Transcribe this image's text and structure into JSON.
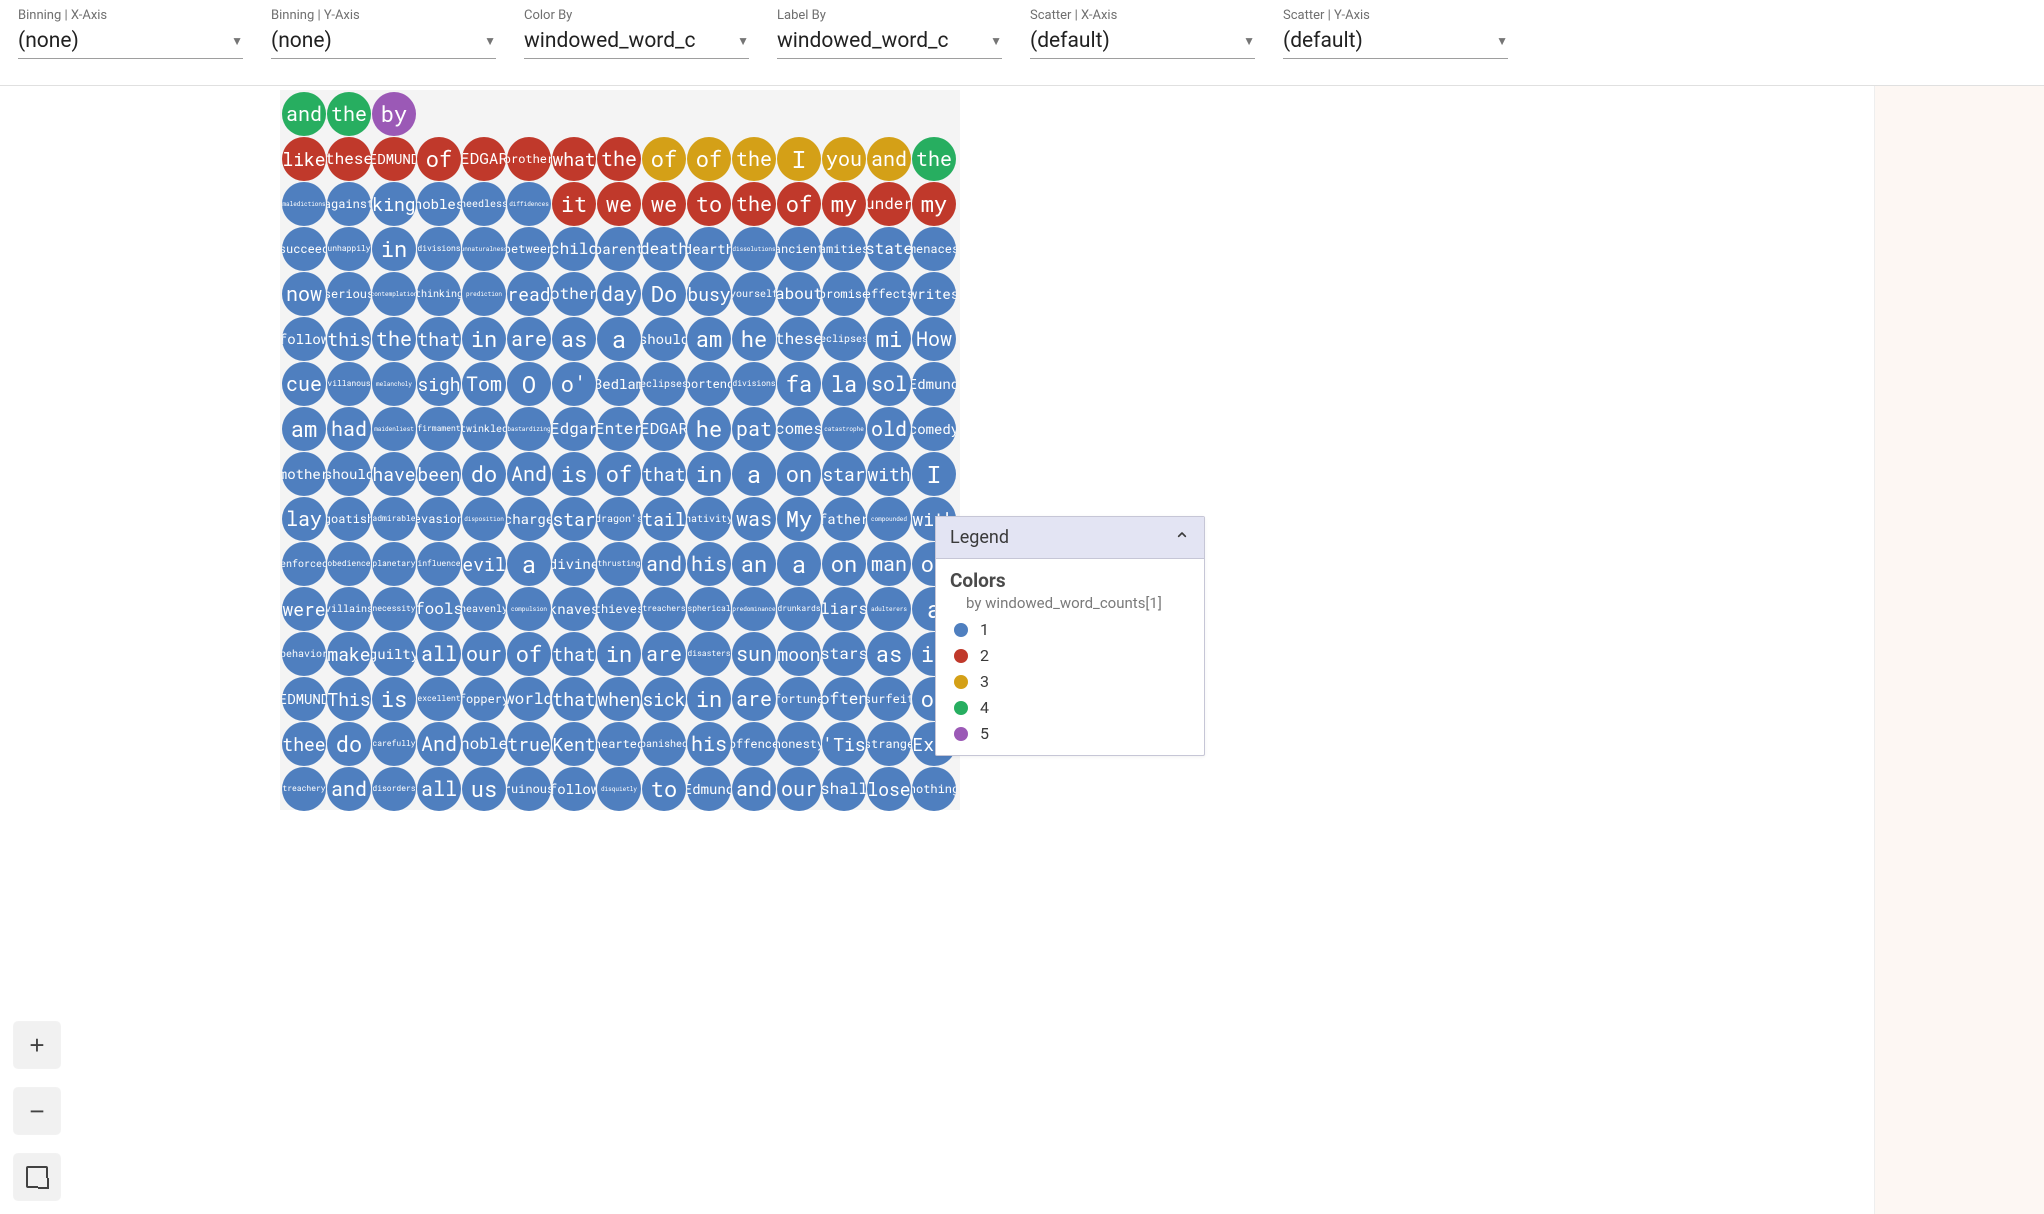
{
  "controls": [
    {
      "label": "Binning | X-Axis",
      "value": "(none)"
    },
    {
      "label": "Binning | Y-Axis",
      "value": "(none)"
    },
    {
      "label": "Color By",
      "value": "windowed_word_c"
    },
    {
      "label": "Label By",
      "value": "windowed_word_c"
    },
    {
      "label": "Scatter | X-Axis",
      "value": "(default)"
    },
    {
      "label": "Scatter | Y-Axis",
      "value": "(default)"
    }
  ],
  "colors": {
    "1": "#4f7fbf",
    "2": "#c0392b",
    "3": "#d4a017",
    "4": "#27ae60",
    "5": "#9b59b6"
  },
  "fontScale": {
    "max": 24,
    "min": 6,
    "maxLen": 1,
    "minLen": 10
  },
  "short_row_cols": 3,
  "rows": [
    [
      {
        "t": "and",
        "c": 4
      },
      {
        "t": "the",
        "c": 4
      },
      {
        "t": "by",
        "c": 5
      }
    ],
    [
      {
        "t": "like",
        "c": 2
      },
      {
        "t": "these",
        "c": 2
      },
      {
        "t": "EDMUND",
        "c": 2
      },
      {
        "t": "of",
        "c": 2
      },
      {
        "t": "EDGAR",
        "c": 2
      },
      {
        "t": "brother",
        "c": 2
      },
      {
        "t": "what",
        "c": 2
      },
      {
        "t": "the",
        "c": 2
      },
      {
        "t": "of",
        "c": 3
      },
      {
        "t": "of",
        "c": 3
      },
      {
        "t": "the",
        "c": 3
      },
      {
        "t": "I",
        "c": 3
      },
      {
        "t": "you",
        "c": 3
      },
      {
        "t": "and",
        "c": 3
      },
      {
        "t": "the",
        "c": 4
      }
    ],
    [
      {
        "t": "maledictions",
        "c": 1
      },
      {
        "t": "against",
        "c": 1
      },
      {
        "t": "king",
        "c": 1
      },
      {
        "t": "nobles",
        "c": 1
      },
      {
        "t": "needless",
        "c": 1
      },
      {
        "t": "diffidences",
        "c": 1
      },
      {
        "t": "it",
        "c": 2
      },
      {
        "t": "we",
        "c": 2
      },
      {
        "t": "we",
        "c": 2
      },
      {
        "t": "to",
        "c": 2
      },
      {
        "t": "the",
        "c": 2
      },
      {
        "t": "of",
        "c": 2
      },
      {
        "t": "my",
        "c": 2
      },
      {
        "t": "under",
        "c": 2
      },
      {
        "t": "my",
        "c": 2
      }
    ],
    [
      {
        "t": "succeed",
        "c": 1
      },
      {
        "t": "unhappily",
        "c": 1
      },
      {
        "t": "in",
        "c": 1
      },
      {
        "t": "divisions",
        "c": 1
      },
      {
        "t": "unnaturalness",
        "c": 1
      },
      {
        "t": "between",
        "c": 1
      },
      {
        "t": "child",
        "c": 1
      },
      {
        "t": "parent",
        "c": 1
      },
      {
        "t": "death",
        "c": 1
      },
      {
        "t": "dearth",
        "c": 1
      },
      {
        "t": "dissolutions",
        "c": 1
      },
      {
        "t": "ancient",
        "c": 1
      },
      {
        "t": "amities",
        "c": 1
      },
      {
        "t": "state",
        "c": 1
      },
      {
        "t": "menaces",
        "c": 1
      }
    ],
    [
      {
        "t": "now",
        "c": 1
      },
      {
        "t": "serious",
        "c": 1
      },
      {
        "t": "contemplation",
        "c": 1
      },
      {
        "t": "thinking",
        "c": 1
      },
      {
        "t": "prediction",
        "c": 1
      },
      {
        "t": "read",
        "c": 1
      },
      {
        "t": "other",
        "c": 1
      },
      {
        "t": "day",
        "c": 1
      },
      {
        "t": "Do",
        "c": 1
      },
      {
        "t": "busy",
        "c": 1
      },
      {
        "t": "yourself",
        "c": 1
      },
      {
        "t": "about",
        "c": 1
      },
      {
        "t": "promise",
        "c": 1
      },
      {
        "t": "effects",
        "c": 1
      },
      {
        "t": "writes",
        "c": 1
      }
    ],
    [
      {
        "t": "follow",
        "c": 1
      },
      {
        "t": "this",
        "c": 1
      },
      {
        "t": "the",
        "c": 1
      },
      {
        "t": "that",
        "c": 1
      },
      {
        "t": "in",
        "c": 1
      },
      {
        "t": "are",
        "c": 1
      },
      {
        "t": "as",
        "c": 1
      },
      {
        "t": "a",
        "c": 1
      },
      {
        "t": "should",
        "c": 1
      },
      {
        "t": "am",
        "c": 1
      },
      {
        "t": "he",
        "c": 1
      },
      {
        "t": "these",
        "c": 1
      },
      {
        "t": "eclipses",
        "c": 1
      },
      {
        "t": "mi",
        "c": 1
      },
      {
        "t": "How",
        "c": 1
      }
    ],
    [
      {
        "t": "cue",
        "c": 1
      },
      {
        "t": "villanous",
        "c": 1
      },
      {
        "t": "melancholy",
        "c": 1
      },
      {
        "t": "sigh",
        "c": 1
      },
      {
        "t": "Tom",
        "c": 1
      },
      {
        "t": "O",
        "c": 1
      },
      {
        "t": "o'",
        "c": 1
      },
      {
        "t": "Bedlam",
        "c": 1
      },
      {
        "t": "eclipses",
        "c": 1
      },
      {
        "t": "portend",
        "c": 1
      },
      {
        "t": "divisions",
        "c": 1
      },
      {
        "t": "fa",
        "c": 1
      },
      {
        "t": "la",
        "c": 1
      },
      {
        "t": "sol",
        "c": 1
      },
      {
        "t": "Edmund",
        "c": 1
      }
    ],
    [
      {
        "t": "am",
        "c": 1
      },
      {
        "t": "had",
        "c": 1
      },
      {
        "t": "maidenliest",
        "c": 1
      },
      {
        "t": "firmament",
        "c": 1
      },
      {
        "t": "twinkled",
        "c": 1
      },
      {
        "t": "bastardizing",
        "c": 1
      },
      {
        "t": "Edgar",
        "c": 1
      },
      {
        "t": "Enter",
        "c": 1
      },
      {
        "t": "EDGAR",
        "c": 1
      },
      {
        "t": "he",
        "c": 1
      },
      {
        "t": "pat",
        "c": 1
      },
      {
        "t": "comes",
        "c": 1
      },
      {
        "t": "catastrophe",
        "c": 1
      },
      {
        "t": "old",
        "c": 1
      },
      {
        "t": "comedy",
        "c": 1
      }
    ],
    [
      {
        "t": "mother",
        "c": 1
      },
      {
        "t": "should",
        "c": 1
      },
      {
        "t": "have",
        "c": 1
      },
      {
        "t": "been",
        "c": 1
      },
      {
        "t": "do",
        "c": 1
      },
      {
        "t": "And",
        "c": 1
      },
      {
        "t": "is",
        "c": 1
      },
      {
        "t": "of",
        "c": 1
      },
      {
        "t": "that",
        "c": 1
      },
      {
        "t": "in",
        "c": 1
      },
      {
        "t": "a",
        "c": 1
      },
      {
        "t": "on",
        "c": 1
      },
      {
        "t": "star",
        "c": 1
      },
      {
        "t": "with",
        "c": 1
      },
      {
        "t": "I",
        "c": 1
      }
    ],
    [
      {
        "t": "lay",
        "c": 1
      },
      {
        "t": "goatish",
        "c": 1
      },
      {
        "t": "admirable",
        "c": 1
      },
      {
        "t": "evasion",
        "c": 1
      },
      {
        "t": "disposition",
        "c": 1
      },
      {
        "t": "charge",
        "c": 1
      },
      {
        "t": "star",
        "c": 1
      },
      {
        "t": "dragon's",
        "c": 1
      },
      {
        "t": "tail",
        "c": 1
      },
      {
        "t": "nativity",
        "c": 1
      },
      {
        "t": "was",
        "c": 1
      },
      {
        "t": "My",
        "c": 1
      },
      {
        "t": "father",
        "c": 1
      },
      {
        "t": "compounded",
        "c": 1
      },
      {
        "t": "with",
        "c": 1
      }
    ],
    [
      {
        "t": "enforced",
        "c": 1
      },
      {
        "t": "obedience",
        "c": 1
      },
      {
        "t": "planetary",
        "c": 1
      },
      {
        "t": "influence",
        "c": 1
      },
      {
        "t": "evil",
        "c": 1
      },
      {
        "t": "a",
        "c": 1
      },
      {
        "t": "divine",
        "c": 1
      },
      {
        "t": "thrusting",
        "c": 1
      },
      {
        "t": "and",
        "c": 1
      },
      {
        "t": "his",
        "c": 1
      },
      {
        "t": "an",
        "c": 1
      },
      {
        "t": "a",
        "c": 1
      },
      {
        "t": "on",
        "c": 1
      },
      {
        "t": "man",
        "c": 1
      },
      {
        "t": "of",
        "c": 1
      }
    ],
    [
      {
        "t": "were",
        "c": 1
      },
      {
        "t": "villains",
        "c": 1
      },
      {
        "t": "necessity",
        "c": 1
      },
      {
        "t": "fools",
        "c": 1
      },
      {
        "t": "heavenly",
        "c": 1
      },
      {
        "t": "compulsion",
        "c": 1
      },
      {
        "t": "knaves",
        "c": 1
      },
      {
        "t": "thieves",
        "c": 1
      },
      {
        "t": "treachers",
        "c": 1
      },
      {
        "t": "spherical",
        "c": 1
      },
      {
        "t": "predominance",
        "c": 1
      },
      {
        "t": "drunkards",
        "c": 1
      },
      {
        "t": "liars",
        "c": 1
      },
      {
        "t": "adulterers",
        "c": 1
      },
      {
        "t": "a",
        "c": 1
      }
    ],
    [
      {
        "t": "behavior",
        "c": 1
      },
      {
        "t": "make",
        "c": 1
      },
      {
        "t": "guilty",
        "c": 1
      },
      {
        "t": "all",
        "c": 1
      },
      {
        "t": "our",
        "c": 1
      },
      {
        "t": "of",
        "c": 1
      },
      {
        "t": "that",
        "c": 1
      },
      {
        "t": "in",
        "c": 1
      },
      {
        "t": "are",
        "c": 1
      },
      {
        "t": "disasters",
        "c": 1
      },
      {
        "t": "sun",
        "c": 1
      },
      {
        "t": "moon",
        "c": 1
      },
      {
        "t": "stars",
        "c": 1
      },
      {
        "t": "as",
        "c": 1
      },
      {
        "t": "if",
        "c": 1
      }
    ],
    [
      {
        "t": "EDMUND",
        "c": 1
      },
      {
        "t": "This",
        "c": 1
      },
      {
        "t": "is",
        "c": 1
      },
      {
        "t": "excellent",
        "c": 1
      },
      {
        "t": "foppery",
        "c": 1
      },
      {
        "t": "world",
        "c": 1
      },
      {
        "t": "that",
        "c": 1
      },
      {
        "t": "when",
        "c": 1
      },
      {
        "t": "sick",
        "c": 1
      },
      {
        "t": "in",
        "c": 1
      },
      {
        "t": "are",
        "c": 1
      },
      {
        "t": "fortune",
        "c": 1
      },
      {
        "t": "often",
        "c": 1
      },
      {
        "t": "surfeit",
        "c": 1
      },
      {
        "t": "of",
        "c": 1
      }
    ],
    [
      {
        "t": "thee",
        "c": 1
      },
      {
        "t": "do",
        "c": 1
      },
      {
        "t": "carefully",
        "c": 1
      },
      {
        "t": "And",
        "c": 1
      },
      {
        "t": "noble",
        "c": 1
      },
      {
        "t": "true",
        "c": 1
      },
      {
        "t": "Kent",
        "c": 1
      },
      {
        "t": "hearted",
        "c": 1
      },
      {
        "t": "banished",
        "c": 1
      },
      {
        "t": "his",
        "c": 1
      },
      {
        "t": "offence",
        "c": 1
      },
      {
        "t": "honesty",
        "c": 1
      },
      {
        "t": "'Tis",
        "c": 1
      },
      {
        "t": "strange",
        "c": 1
      },
      {
        "t": "Exit",
        "c": 1
      }
    ],
    [
      {
        "t": "treachery",
        "c": 1
      },
      {
        "t": "and",
        "c": 1
      },
      {
        "t": "disorders",
        "c": 1
      },
      {
        "t": "all",
        "c": 1
      },
      {
        "t": "us",
        "c": 1
      },
      {
        "t": "ruinous",
        "c": 1
      },
      {
        "t": "follow",
        "c": 1
      },
      {
        "t": "disquietly",
        "c": 1
      },
      {
        "t": "to",
        "c": 1
      },
      {
        "t": "Edmund",
        "c": 1
      },
      {
        "t": "and",
        "c": 1
      },
      {
        "t": "our",
        "c": 1
      },
      {
        "t": "shall",
        "c": 1
      },
      {
        "t": "lose",
        "c": 1
      },
      {
        "t": "nothing",
        "c": 1
      }
    ]
  ],
  "legend": {
    "title": "Legend",
    "section": "Colors",
    "sub": "by windowed_word_counts[1]",
    "items": [
      {
        "label": "1",
        "colorKey": "1"
      },
      {
        "label": "2",
        "colorKey": "2"
      },
      {
        "label": "3",
        "colorKey": "3"
      },
      {
        "label": "4",
        "colorKey": "4"
      },
      {
        "label": "5",
        "colorKey": "5"
      }
    ]
  },
  "zoom": {
    "in": "+",
    "out": "−"
  }
}
